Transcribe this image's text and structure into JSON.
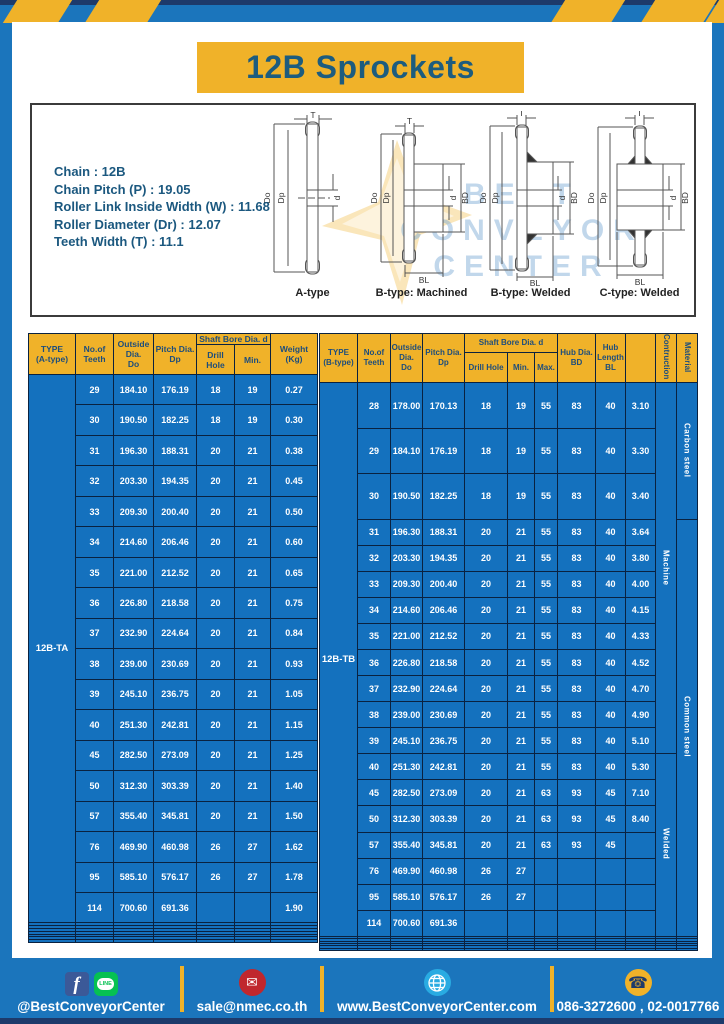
{
  "header": {
    "title": "12B Sprockets"
  },
  "specs": [
    "Chain : 12B",
    "Chain Pitch (P) : 19.05",
    "Roller Link Inside Width (W) : 11.68",
    "Roller Diameter (Dr) : 12.07",
    "Teeth Width (T) : 11.1"
  ],
  "watermark": [
    "BEST",
    "CONVEYOR",
    "CENTER"
  ],
  "diagrams": {
    "labels": [
      "A-type",
      "B-type: Machined",
      "B-type: Welded",
      "C-type: Welded"
    ],
    "dims": {
      "t": "T",
      "outer": "Do",
      "pitch": "Dp",
      "bore": "d",
      "hub_dia": "BD",
      "hub_len": "BL"
    }
  },
  "table_a": {
    "col_type": "TYPE\n(A-type)",
    "col_teeth": "No.of\nTeeth",
    "col_do": "Outside\nDia.\nDo",
    "col_dp": "Pitch Dia.\nDp",
    "shaft_group": "Shaft Bore Dia. d",
    "sub_drill": "Drill Hole",
    "sub_min": "Min.",
    "col_weight": "Weight\n(Kg)",
    "type_label": "12B-TA",
    "rows": [
      [
        "29",
        "184.10",
        "176.19",
        "18",
        "19",
        "0.27"
      ],
      [
        "30",
        "190.50",
        "182.25",
        "18",
        "19",
        "0.30"
      ],
      [
        "31",
        "196.30",
        "188.31",
        "20",
        "21",
        "0.38"
      ],
      [
        "32",
        "203.30",
        "194.35",
        "20",
        "21",
        "0.45"
      ],
      [
        "33",
        "209.30",
        "200.40",
        "20",
        "21",
        "0.50"
      ],
      [
        "34",
        "214.60",
        "206.46",
        "20",
        "21",
        "0.60"
      ],
      [
        "35",
        "221.00",
        "212.52",
        "20",
        "21",
        "0.65"
      ],
      [
        "36",
        "226.80",
        "218.58",
        "20",
        "21",
        "0.75"
      ],
      [
        "37",
        "232.90",
        "224.64",
        "20",
        "21",
        "0.84"
      ],
      [
        "38",
        "239.00",
        "230.69",
        "20",
        "21",
        "0.93"
      ],
      [
        "39",
        "245.10",
        "236.75",
        "20",
        "21",
        "1.05"
      ],
      [
        "40",
        "251.30",
        "242.81",
        "20",
        "21",
        "1.15"
      ],
      [
        "45",
        "282.50",
        "273.09",
        "20",
        "21",
        "1.25"
      ],
      [
        "50",
        "312.30",
        "303.39",
        "20",
        "21",
        "1.40"
      ],
      [
        "57",
        "355.40",
        "345.81",
        "20",
        "21",
        "1.50"
      ],
      [
        "76",
        "469.90",
        "460.98",
        "26",
        "27",
        "1.62"
      ],
      [
        "95",
        "585.10",
        "576.17",
        "26",
        "27",
        "1.78"
      ],
      [
        "114",
        "700.60",
        "691.36",
        "",
        "",
        "1.90"
      ]
    ],
    "empty_rows": 7,
    "columns": 7
  },
  "table_b": {
    "col_type": "TYPE\n(B-type)",
    "col_teeth": "No.of\nTeeth",
    "col_do": "Outside\nDia.\nDo",
    "col_dp": "Pitch Dia.\nDp",
    "shaft_group": "Shaft Bore Dia. d",
    "sub_drill": "Drill Hole",
    "sub_min": "Min.",
    "sub_max": "Max.",
    "col_bd": "Hub Dia.\nBD",
    "col_bl": "Hub\nLength\nBL",
    "col_constr": "Contruction",
    "col_mat": "Material",
    "type_label": "12B-TB",
    "rows": [
      [
        "28",
        "178.00",
        "170.13",
        "18",
        "19",
        "55",
        "83",
        "40",
        "3.10"
      ],
      [
        "29",
        "184.10",
        "176.19",
        "18",
        "19",
        "55",
        "83",
        "40",
        "3.30"
      ],
      [
        "30",
        "190.50",
        "182.25",
        "18",
        "19",
        "55",
        "83",
        "40",
        "3.40"
      ],
      [
        "31",
        "196.30",
        "188.31",
        "20",
        "21",
        "55",
        "83",
        "40",
        "3.64"
      ],
      [
        "32",
        "203.30",
        "194.35",
        "20",
        "21",
        "55",
        "83",
        "40",
        "3.80"
      ],
      [
        "33",
        "209.30",
        "200.40",
        "20",
        "21",
        "55",
        "83",
        "40",
        "4.00"
      ],
      [
        "34",
        "214.60",
        "206.46",
        "20",
        "21",
        "55",
        "83",
        "40",
        "4.15"
      ],
      [
        "35",
        "221.00",
        "212.52",
        "20",
        "21",
        "55",
        "83",
        "40",
        "4.33"
      ],
      [
        "36",
        "226.80",
        "218.58",
        "20",
        "21",
        "55",
        "83",
        "40",
        "4.52"
      ],
      [
        "37",
        "232.90",
        "224.64",
        "20",
        "21",
        "55",
        "83",
        "40",
        "4.70"
      ],
      [
        "38",
        "239.00",
        "230.69",
        "20",
        "21",
        "55",
        "83",
        "40",
        "4.90"
      ],
      [
        "39",
        "245.10",
        "236.75",
        "20",
        "21",
        "55",
        "83",
        "40",
        "5.10"
      ],
      [
        "40",
        "251.30",
        "242.81",
        "20",
        "21",
        "55",
        "83",
        "40",
        "5.30"
      ],
      [
        "45",
        "282.50",
        "273.09",
        "20",
        "21",
        "63",
        "93",
        "45",
        "7.10"
      ],
      [
        "50",
        "312.30",
        "303.39",
        "20",
        "21",
        "63",
        "93",
        "45",
        "8.40"
      ],
      [
        "57",
        "355.40",
        "345.81",
        "20",
        "21",
        "63",
        "93",
        "45",
        ""
      ],
      [
        "76",
        "469.90",
        "460.98",
        "26",
        "27",
        "",
        "",
        "",
        ""
      ],
      [
        "95",
        "585.10",
        "576.17",
        "26",
        "27",
        "",
        "",
        "",
        ""
      ],
      [
        "114",
        "700.60",
        "691.36",
        "",
        "",
        "",
        "",
        "",
        ""
      ]
    ],
    "construction_spans": [
      {
        "label": "Machine",
        "rows": 12
      },
      {
        "label": "Welded",
        "rows": 7
      }
    ],
    "material_spans": [
      {
        "label": "Carbon steel",
        "rows": 3
      },
      {
        "label": "Common steel",
        "rows": 16
      }
    ],
    "empty_rows": 6,
    "columns": 12
  },
  "footer": {
    "social": "@BestConveyorCenter",
    "email": "sale@nmec.co.th",
    "website": "www.BestConveyorCenter.com",
    "phone": "086-3272600 , 02-0017766",
    "line_label": "LINE",
    "fb_label": "f"
  },
  "colors": {
    "blue": "#1b75bc",
    "cell_blue": "#1471be",
    "yellow": "#f0b229",
    "dark_navy": "#1d3a6b",
    "title_text": "#1d5c7e",
    "border": "#0a2240"
  }
}
